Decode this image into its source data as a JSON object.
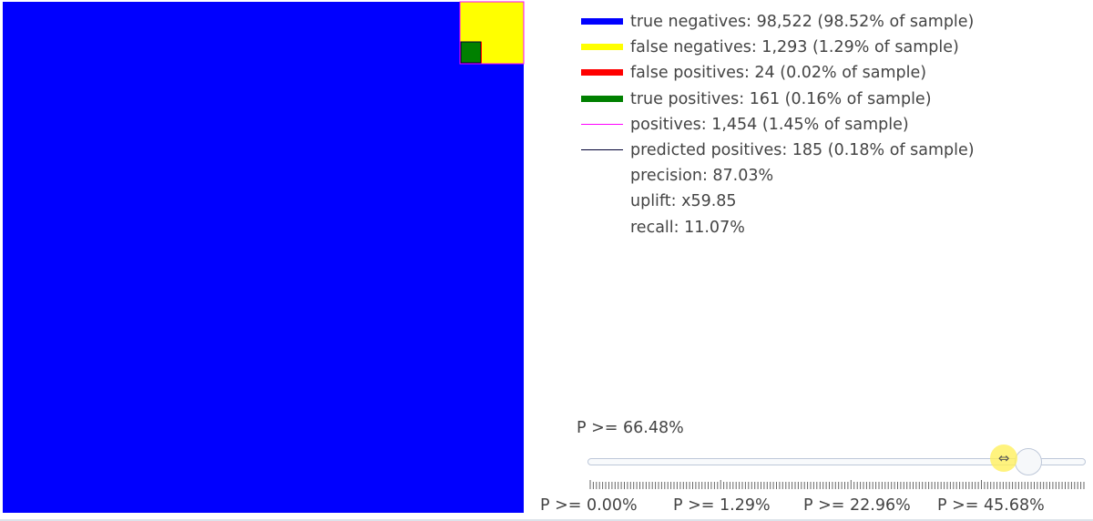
{
  "chart_data": {
    "type": "treemap",
    "total": 100000,
    "cells": [
      {
        "name": "true negatives",
        "count": 98522,
        "fill": "#0000ff",
        "stroke": "#0000ff"
      },
      {
        "name": "false negatives",
        "count": 1293,
        "fill": "#ffff00",
        "stroke": "#ffff00"
      },
      {
        "name": "false positives",
        "count": 24,
        "fill": "#ff0000",
        "stroke": "#ff0000"
      },
      {
        "name": "true positives",
        "count": 161,
        "fill": "#008000",
        "stroke": "#000000"
      }
    ],
    "outlines": [
      {
        "name": "positives",
        "count": 1454,
        "color": "#ff00ff"
      },
      {
        "name": "predicted positives",
        "count": 185,
        "color": "#000033"
      }
    ]
  },
  "legend": [
    {
      "label": "true negatives: 98,522 (98.52% of sample)",
      "color": "#0000ff",
      "style": "bar"
    },
    {
      "label": "false negatives: 1,293 (1.29% of sample)",
      "color": "#ffff00",
      "style": "bar"
    },
    {
      "label": "false positives: 24 (0.02% of sample)",
      "color": "#ff0000",
      "style": "bar"
    },
    {
      "label": "true positives: 161 (0.16% of sample)",
      "color": "#008000",
      "style": "bar"
    },
    {
      "label": "positives: 1,454 (1.45% of sample)",
      "color": "#ff00ff",
      "style": "line"
    },
    {
      "label": "predicted positives: 185 (0.18% of sample)",
      "color": "#000033",
      "style": "line"
    },
    {
      "label": "precision: 87.03%",
      "color": "",
      "style": "none"
    },
    {
      "label": "uplift: x59.85",
      "color": "",
      "style": "none"
    },
    {
      "label": "recall: 11.07%",
      "color": "",
      "style": "none"
    }
  ],
  "slider": {
    "current_value": "P >= 66.48%",
    "position": 0.885,
    "step_labels": [
      "P >= 0.00%",
      "P >= 1.29%",
      "P >= 22.96%",
      "P >= 45.68%"
    ],
    "step_positions": [
      0.0,
      0.2645,
      0.529,
      0.7935
    ],
    "steps_count": 160
  }
}
